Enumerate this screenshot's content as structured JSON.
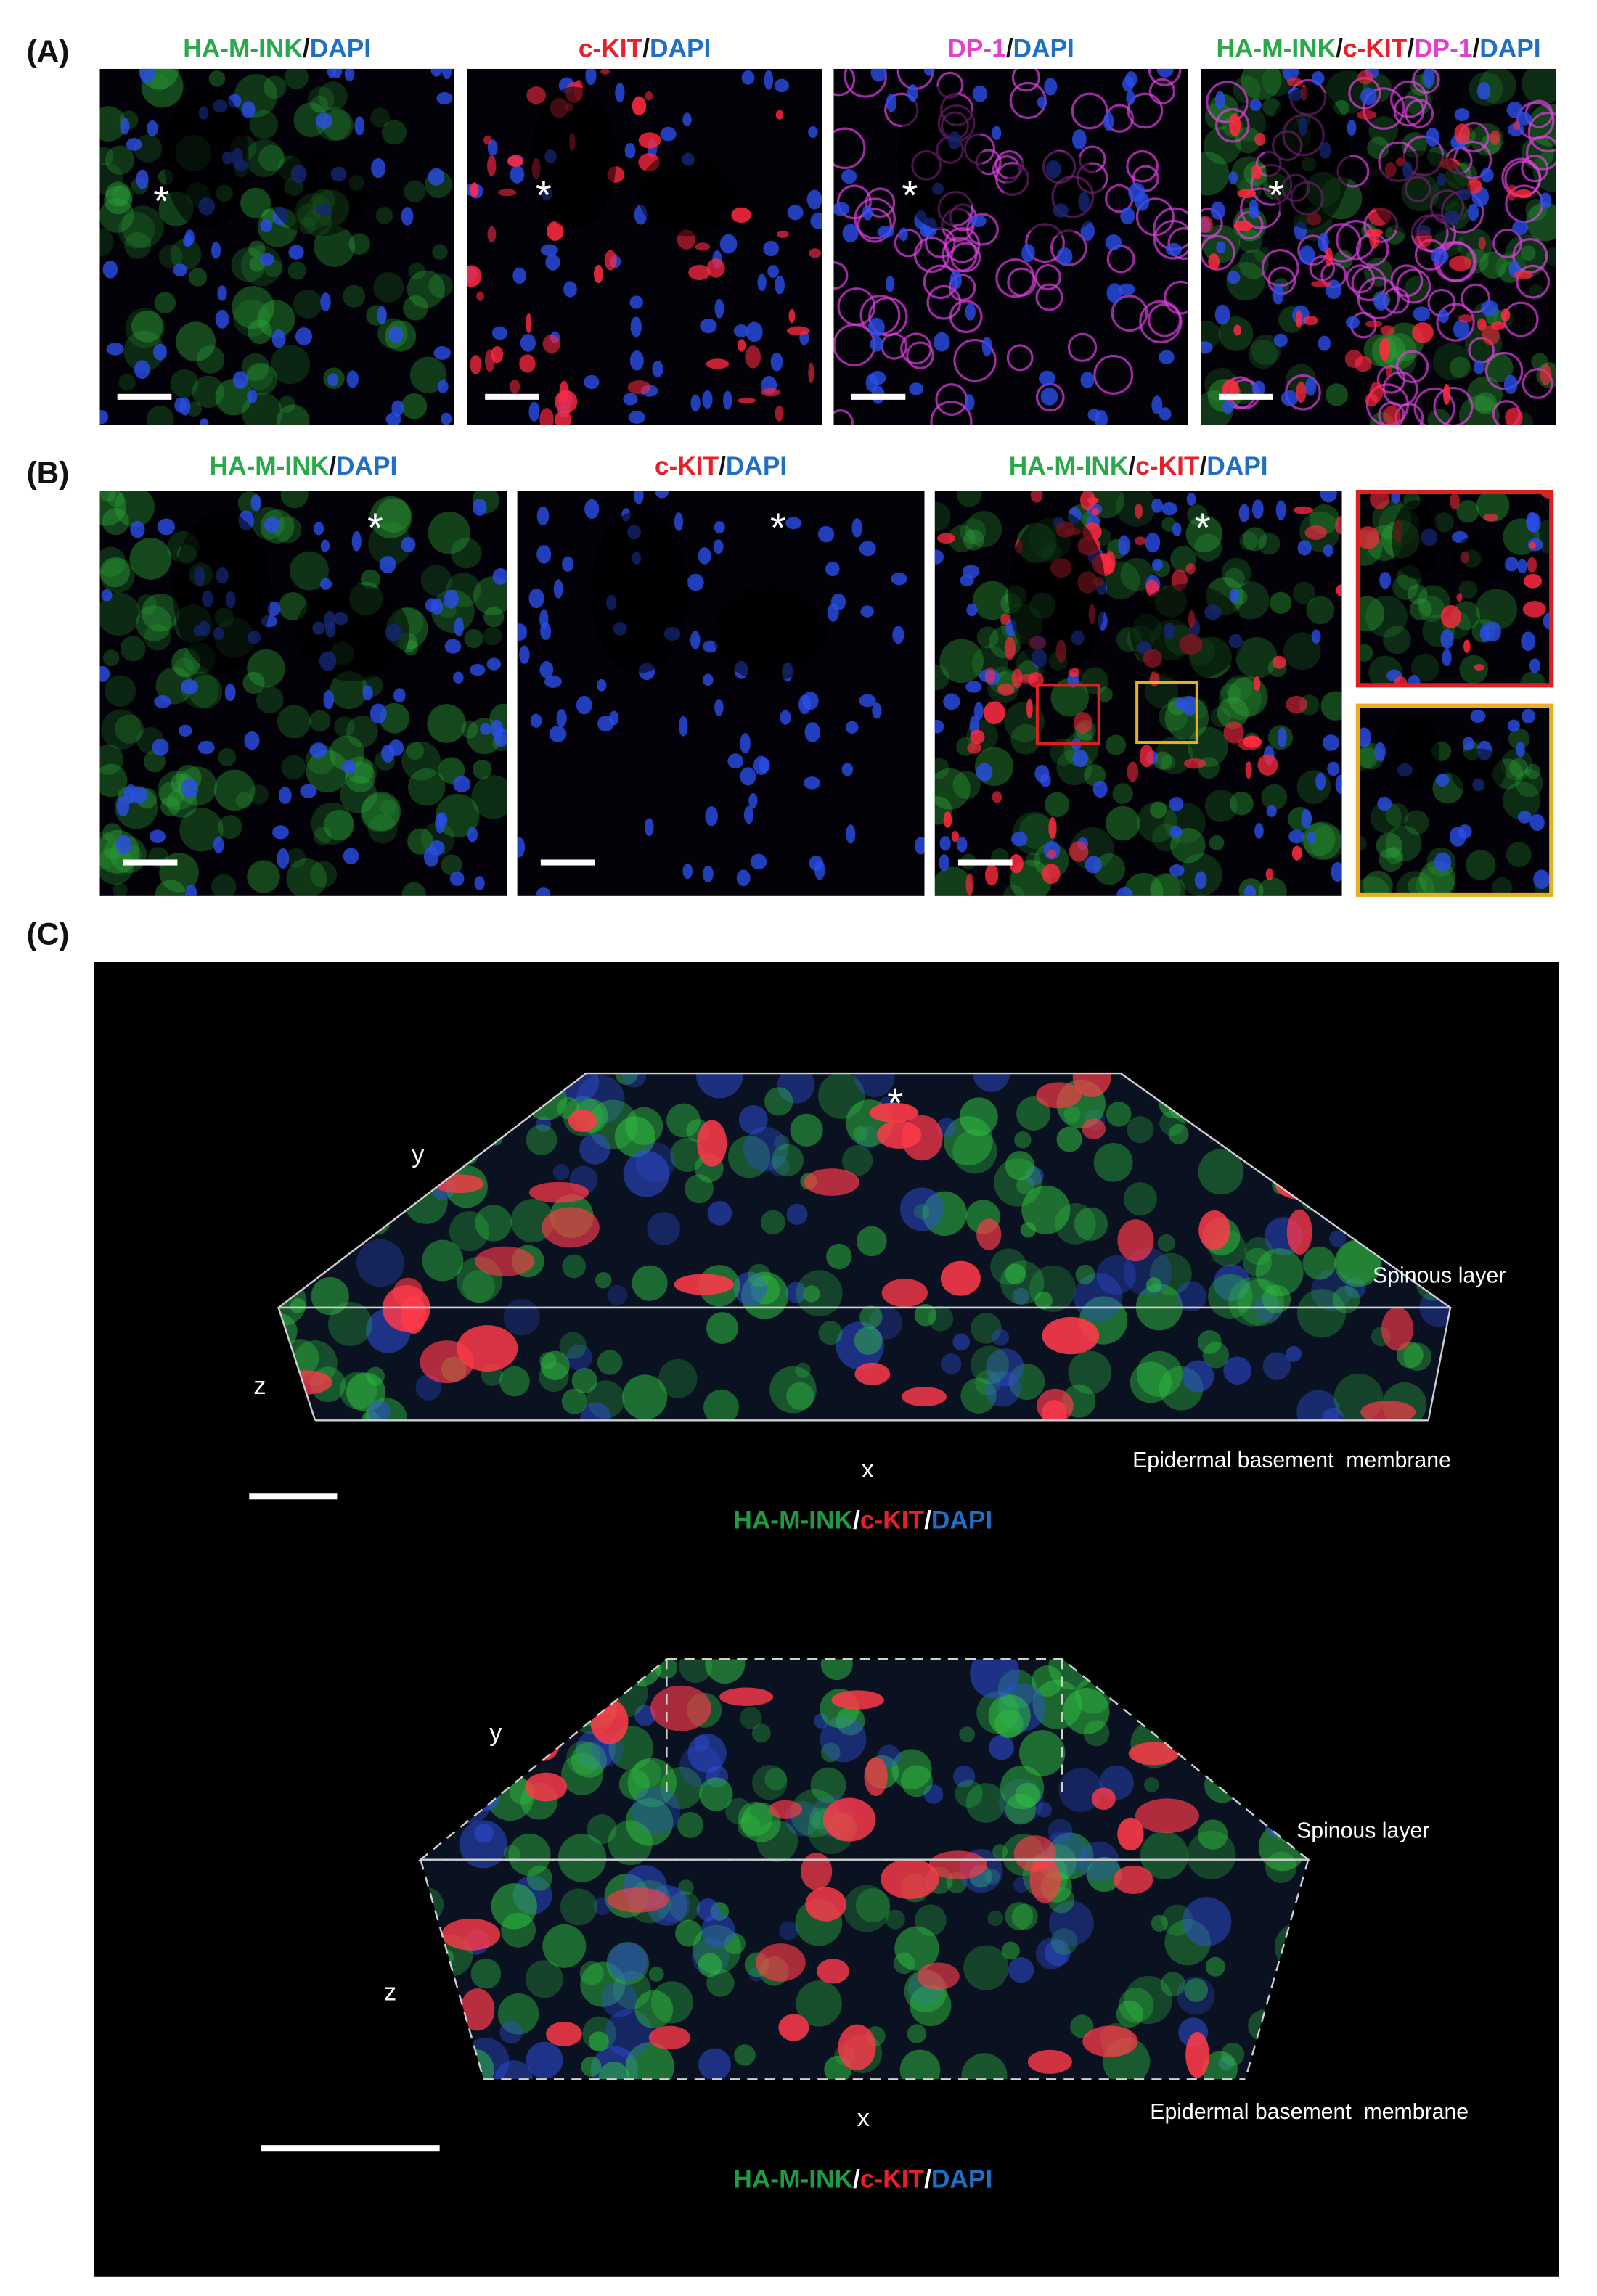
{
  "panels": [
    {
      "label": "(A)",
      "images": [
        {
          "caption": [
            {
              "text": "HA-M-INK",
              "color": "#2aa84a"
            },
            {
              "text": "/",
              "color": "#111111"
            },
            {
              "text": "DAPI",
              "color": "#1f6fc4"
            }
          ],
          "marker": "*"
        },
        {
          "caption": [
            {
              "text": "c-KIT",
              "color": "#e8202a"
            },
            {
              "text": "/",
              "color": "#111111"
            },
            {
              "text": "DAPI",
              "color": "#1f6fc4"
            }
          ],
          "marker": "*"
        },
        {
          "caption": [
            {
              "text": "DP-1",
              "color": "#e040d0"
            },
            {
              "text": "/",
              "color": "#111111"
            },
            {
              "text": "DAPI",
              "color": "#1f6fc4"
            }
          ],
          "marker": "*"
        },
        {
          "caption": [
            {
              "text": "HA-M-INK",
              "color": "#2aa84a"
            },
            {
              "text": "/",
              "color": "#111111"
            },
            {
              "text": "c-KIT",
              "color": "#e8202a"
            },
            {
              "text": "/",
              "color": "#111111"
            },
            {
              "text": "DP-1",
              "color": "#e040d0"
            },
            {
              "text": "/",
              "color": "#111111"
            },
            {
              "text": "DAPI",
              "color": "#1f6fc4"
            }
          ],
          "marker": "*"
        }
      ]
    },
    {
      "label": "(B)",
      "images": [
        {
          "caption": [
            {
              "text": "HA-M-INK",
              "color": "#2aa84a"
            },
            {
              "text": "/",
              "color": "#111111"
            },
            {
              "text": "DAPI",
              "color": "#1f6fc4"
            }
          ],
          "marker": "*"
        },
        {
          "caption": [
            {
              "text": "c-KIT",
              "color": "#e8202a"
            },
            {
              "text": "/",
              "color": "#111111"
            },
            {
              "text": "DAPI",
              "color": "#1f6fc4"
            }
          ],
          "marker": "*"
        },
        {
          "caption": [
            {
              "text": "HA-M-INK",
              "color": "#2aa84a"
            },
            {
              "text": "/",
              "color": "#111111"
            },
            {
              "text": "c-KIT",
              "color": "#e8202a"
            },
            {
              "text": "/",
              "color": "#111111"
            },
            {
              "text": "DAPI",
              "color": "#1f6fc4"
            }
          ],
          "marker": "*"
        }
      ]
    },
    {
      "label": "(C)",
      "views": [
        {
          "marker": "*",
          "y_label": "y",
          "z_label": "z",
          "x_label": "x",
          "top_label": "Spinous layer",
          "bottom_label": "Epidermal basement  membrane",
          "caption": [
            {
              "text": "HA-M-INK",
              "color": "#1f9a45"
            },
            {
              "text": "/",
              "color": "#ffffff"
            },
            {
              "text": "c-KIT",
              "color": "#e8202a"
            },
            {
              "text": "/",
              "color": "#ffffff"
            },
            {
              "text": "DAPI",
              "color": "#1f6fc4"
            }
          ]
        },
        {
          "y_label": "y",
          "z_label": "z",
          "x_label": "x",
          "top_label": "Spinous layer",
          "bottom_label": "Epidermal basement  membrane",
          "caption": [
            {
              "text": "HA-M-INK",
              "color": "#1f9a45"
            },
            {
              "text": "/",
              "color": "#ffffff"
            },
            {
              "text": "c-KIT",
              "color": "#e8202a"
            },
            {
              "text": "/",
              "color": "#ffffff"
            },
            {
              "text": "DAPI",
              "color": "#1f6fc4"
            }
          ]
        }
      ]
    }
  ]
}
